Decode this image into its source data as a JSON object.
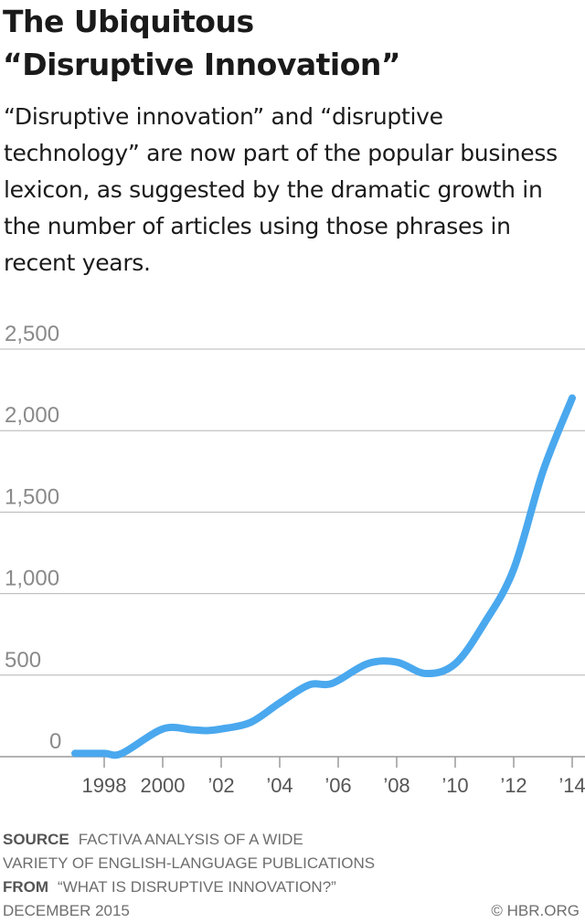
{
  "header": {
    "title_line1": "The Ubiquitous",
    "title_line2": "“Disruptive Innovation”",
    "subtitle": "“Disruptive innovation” and “disruptive technology” are now part of the popular business lexicon, as suggested by the dramatic growth in the number of articles using those phrases in recent years."
  },
  "footer": {
    "source_label": "SOURCE",
    "source_line1": "FACTIVA ANALYSIS OF A WIDE",
    "source_line2": "VARIETY OF ENGLISH-LANGUAGE PUBLICATIONS",
    "from_label": "FROM",
    "from_text": "“WHAT IS DISRUPTIVE INNOVATION?”",
    "date": "DECEMBER 2015",
    "copyright": "© HBR.ORG"
  },
  "colors": {
    "line": "#4aa8ee",
    "grid": "#b4b4b4",
    "tick_text": "#8a8a8a",
    "x_tick_text": "#555555"
  },
  "chart_data": {
    "type": "line",
    "title": "",
    "xlabel": "",
    "ylabel": "",
    "ylim": [
      0,
      2500
    ],
    "xlim": [
      1997,
      2014
    ],
    "yticks": [
      0,
      500,
      1000,
      1500,
      2000,
      2500
    ],
    "ytick_labels": [
      "0",
      "500",
      "1,000",
      "1,500",
      "2,000",
      "2,500"
    ],
    "xticks": [
      1998,
      2000,
      2002,
      2004,
      2006,
      2008,
      2010,
      2012,
      2014
    ],
    "xtick_labels": [
      "1998",
      "2000",
      "’02",
      "’04",
      "’06",
      "’08",
      "’10",
      "’12",
      "’14"
    ],
    "grid": true,
    "series": [
      {
        "x": [
          1997,
          1998,
          1998.6,
          2000,
          2001,
          2001.5,
          2002,
          2003,
          2004,
          2005,
          2005.8,
          2007,
          2008,
          2009,
          2010,
          2011,
          2012,
          2013,
          2014
        ],
        "values": [
          20,
          20,
          20,
          170,
          165,
          160,
          170,
          210,
          330,
          440,
          450,
          570,
          580,
          510,
          570,
          820,
          1150,
          1750,
          2200
        ]
      }
    ]
  }
}
